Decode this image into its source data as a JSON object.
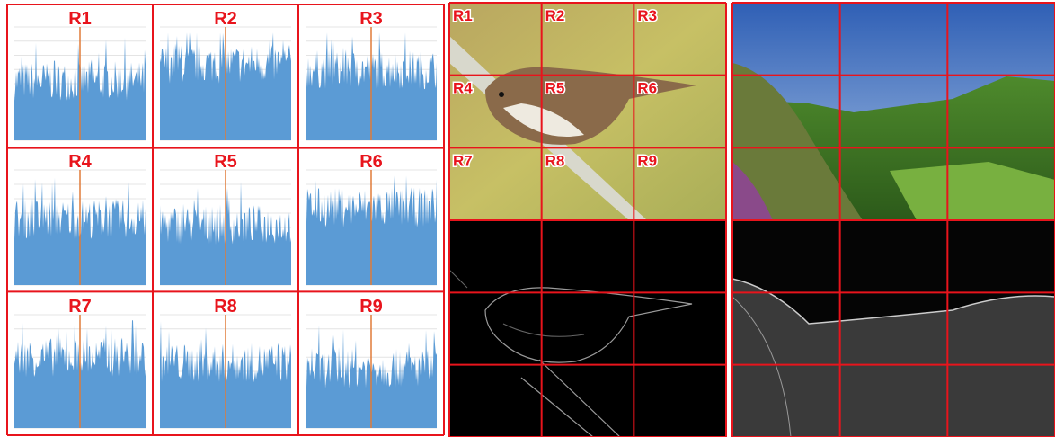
{
  "histogram_panels": {
    "labels": [
      "R1",
      "R2",
      "R3",
      "R4",
      "R5",
      "R6",
      "R7",
      "R8",
      "R9"
    ]
  },
  "bird_image": {
    "region_labels": [
      "R1",
      "R2",
      "R3",
      "R4",
      "R5",
      "R6",
      "R7",
      "R8",
      "R9"
    ]
  }
}
